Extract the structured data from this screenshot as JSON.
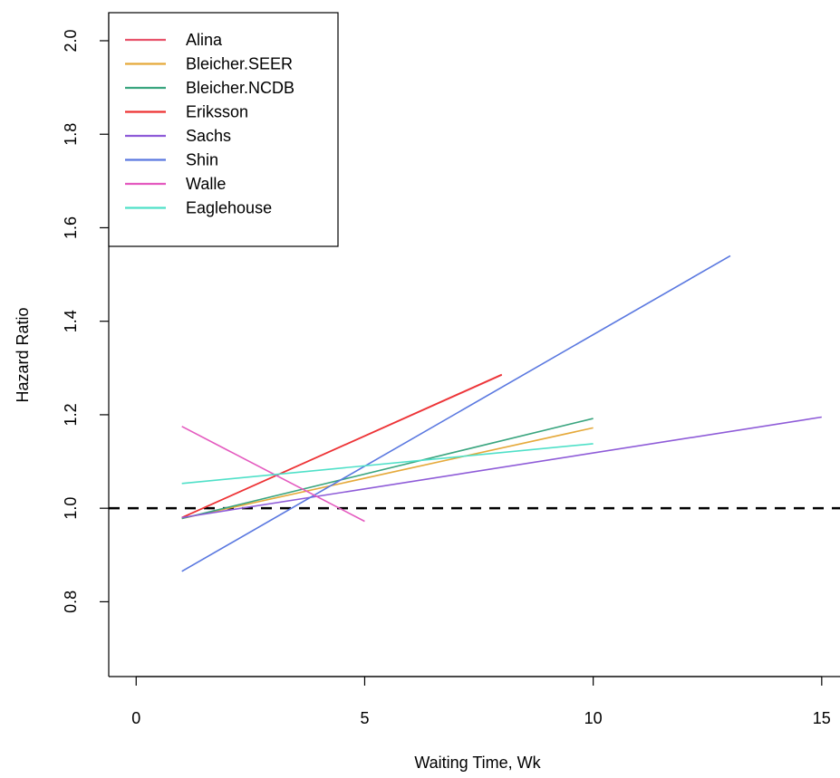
{
  "chart_data": {
    "type": "line",
    "title": "",
    "xlabel": "Waiting Time, Wk",
    "ylabel": "Hazard Ratio",
    "xlim": [
      -0.6,
      15.4
    ],
    "ylim": [
      0.64,
      2.06
    ],
    "xticks": [
      0,
      5,
      10,
      15
    ],
    "yticks": [
      0.8,
      1.0,
      1.2,
      1.4,
      1.6,
      1.8,
      2.0
    ],
    "xtick_labels": [
      "0",
      "5",
      "10",
      "15"
    ],
    "ytick_labels": [
      "0.8",
      "1.0",
      "1.2",
      "1.4",
      "1.6",
      "1.8",
      "2.0"
    ],
    "grid": false,
    "legend_position": "top-left",
    "reference_line": {
      "y": 1.0,
      "style": "dashed",
      "color": "#000000"
    },
    "series": [
      {
        "name": "Alina",
        "color": "#E8536B",
        "x": [
          1,
          8
        ],
        "y": [
          0.98,
          1.285
        ]
      },
      {
        "name": "Bleicher.SEER",
        "color": "#E5A93A",
        "x": [
          1,
          10
        ],
        "y": [
          0.978,
          1.172
        ]
      },
      {
        "name": "Bleicher.NCDB",
        "color": "#3AA57F",
        "x": [
          1,
          10
        ],
        "y": [
          0.978,
          1.192
        ]
      },
      {
        "name": "Eriksson",
        "color": "#EE3333",
        "x": [
          1,
          8
        ],
        "y": [
          0.98,
          1.286
        ]
      },
      {
        "name": "Sachs",
        "color": "#8E5BD8",
        "x": [
          1,
          15
        ],
        "y": [
          0.98,
          1.195
        ]
      },
      {
        "name": "Shin",
        "color": "#5A78E0",
        "x": [
          1,
          13
        ],
        "y": [
          0.865,
          1.54
        ]
      },
      {
        "name": "Walle",
        "color": "#E45ABF",
        "x": [
          1,
          5
        ],
        "y": [
          1.175,
          0.972
        ]
      },
      {
        "name": "Eaglehouse",
        "color": "#4FE0C8",
        "x": [
          1,
          10
        ],
        "y": [
          1.053,
          1.138
        ]
      }
    ]
  }
}
